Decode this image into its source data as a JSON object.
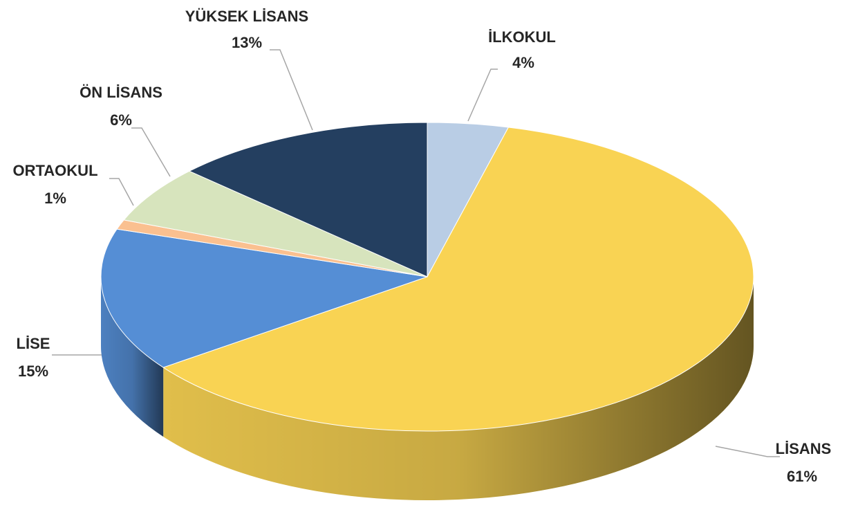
{
  "chart_data": {
    "type": "pie",
    "categories": [
      "İLKOKUL",
      "LİSANS",
      "LİSE",
      "ORTAOKUL",
      "ÖN LİSANS",
      "YÜKSEK LİSANS"
    ],
    "values": [
      4,
      61,
      15,
      1,
      6,
      13
    ],
    "value_labels": [
      "4%",
      "61%",
      "15%",
      "1%",
      "6%",
      "13%"
    ],
    "colors": [
      "#b9cde5",
      "#f9d353",
      "#558ed5",
      "#fac090",
      "#d7e4bd",
      "#243f60"
    ]
  }
}
